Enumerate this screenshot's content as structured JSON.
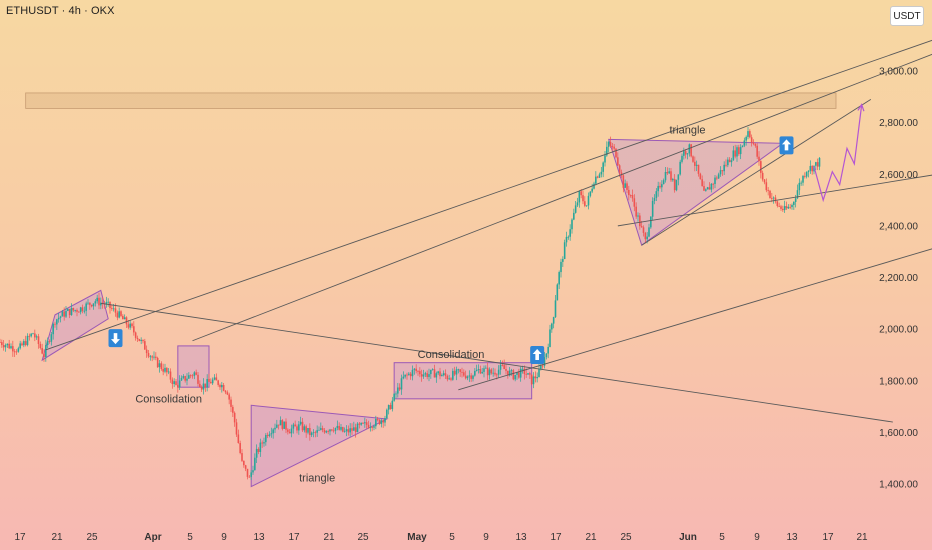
{
  "header": {
    "title": "ETHUSDT · 4h · OKX",
    "currency_badge": "USDT"
  },
  "chart_data": {
    "type": "candlestick",
    "symbol": "ETHUSDT",
    "timeframe": "4h",
    "exchange": "OKX",
    "ylim": [
      1300,
      3200
    ],
    "y_ticks": [
      "3,000.00",
      "2,800.00",
      "2,600.00",
      "2,400.00",
      "2,200.00",
      "2,000.00",
      "1,800.00",
      "1,600.00",
      "1,400.00"
    ],
    "x_ticks": [
      "17",
      "21",
      "25",
      "Apr",
      "5",
      "9",
      "13",
      "17",
      "21",
      "25",
      "May",
      "5",
      "9",
      "13",
      "17",
      "21",
      "25",
      "Jun",
      "5",
      "9",
      "13",
      "17",
      "21"
    ],
    "grid": false,
    "colors": {
      "up": "#26a69a",
      "down": "#ef5350",
      "line": "#5a5a5a",
      "pattern_fill": "#c08fd6",
      "pattern_stroke": "#9b59b6",
      "arrow_box": "#2f86d6",
      "projection": "#b455d3"
    },
    "price_path": [
      [
        0,
        1950
      ],
      [
        10,
        1920
      ],
      [
        18,
        1985
      ],
      [
        24,
        1900
      ],
      [
        30,
        2035
      ],
      [
        36,
        2065
      ],
      [
        44,
        2080
      ],
      [
        52,
        2110
      ],
      [
        58,
        2095
      ],
      [
        64,
        2060
      ],
      [
        72,
        2000
      ],
      [
        78,
        1940
      ],
      [
        84,
        1880
      ],
      [
        90,
        1840
      ],
      [
        96,
        1780
      ],
      [
        100,
        1805
      ],
      [
        106,
        1830
      ],
      [
        110,
        1780
      ],
      [
        116,
        1800
      ],
      [
        120,
        1790
      ],
      [
        124,
        1760
      ],
      [
        128,
        1640
      ],
      [
        132,
        1480
      ],
      [
        136,
        1420
      ],
      [
        140,
        1520
      ],
      [
        146,
        1600
      ],
      [
        152,
        1640
      ],
      [
        158,
        1610
      ],
      [
        164,
        1625
      ],
      [
        170,
        1590
      ],
      [
        176,
        1610
      ],
      [
        182,
        1620
      ],
      [
        188,
        1600
      ],
      [
        194,
        1615
      ],
      [
        200,
        1630
      ],
      [
        206,
        1640
      ],
      [
        210,
        1660
      ],
      [
        214,
        1720
      ],
      [
        220,
        1810
      ],
      [
        226,
        1840
      ],
      [
        232,
        1825
      ],
      [
        238,
        1830
      ],
      [
        244,
        1815
      ],
      [
        250,
        1830
      ],
      [
        256,
        1820
      ],
      [
        262,
        1845
      ],
      [
        268,
        1830
      ],
      [
        274,
        1850
      ],
      [
        280,
        1820
      ],
      [
        286,
        1835
      ],
      [
        290,
        1800
      ],
      [
        294,
        1830
      ],
      [
        298,
        1910
      ],
      [
        302,
        2060
      ],
      [
        304,
        2180
      ],
      [
        308,
        2320
      ],
      [
        312,
        2420
      ],
      [
        316,
        2520
      ],
      [
        320,
        2480
      ],
      [
        324,
        2580
      ],
      [
        328,
        2620
      ],
      [
        332,
        2720
      ],
      [
        336,
        2680
      ],
      [
        340,
        2560
      ],
      [
        344,
        2520
      ],
      [
        348,
        2430
      ],
      [
        352,
        2340
      ],
      [
        356,
        2480
      ],
      [
        360,
        2560
      ],
      [
        364,
        2620
      ],
      [
        368,
        2550
      ],
      [
        372,
        2680
      ],
      [
        376,
        2700
      ],
      [
        380,
        2620
      ],
      [
        384,
        2520
      ],
      [
        388,
        2560
      ],
      [
        392,
        2600
      ],
      [
        396,
        2640
      ],
      [
        400,
        2680
      ],
      [
        404,
        2700
      ],
      [
        408,
        2770
      ],
      [
        412,
        2700
      ],
      [
        416,
        2580
      ],
      [
        420,
        2520
      ],
      [
        424,
        2480
      ],
      [
        428,
        2460
      ],
      [
        432,
        2480
      ],
      [
        436,
        2560
      ],
      [
        440,
        2620
      ],
      [
        444,
        2630
      ],
      [
        448,
        2655
      ]
    ],
    "rectangles": [
      {
        "label": "Consolidation",
        "x": [
          97,
          114
        ],
        "y": [
          1775,
          1935
        ]
      },
      {
        "label": "Consolidation",
        "x": [
          215,
          290
        ],
        "y": [
          1730,
          1870
        ]
      }
    ],
    "patterns": [
      {
        "label": "",
        "points": [
          [
            23,
            1880
          ],
          [
            30,
            2055
          ],
          [
            55,
            2150
          ],
          [
            59,
            2040
          ]
        ]
      },
      {
        "label": "triangle",
        "points": [
          [
            137,
            1390
          ],
          [
            137,
            1705
          ],
          [
            211,
            1652
          ]
        ]
      },
      {
        "label": "triangle",
        "points": [
          [
            332,
            2735
          ],
          [
            427,
            2720
          ],
          [
            350,
            2325
          ]
        ]
      }
    ],
    "annotations": [
      {
        "label": "Consolidation",
        "x": 92,
        "y": 1715
      },
      {
        "label": "Consolidation",
        "x": 246,
        "y": 1888
      },
      {
        "label": "triangle",
        "x": 173,
        "y": 1410
      },
      {
        "label": "triangle",
        "x": 375,
        "y": 2758
      }
    ],
    "trend_lines": [
      {
        "from": [
          25,
          1920
        ],
        "to": [
          515,
          3135
        ]
      },
      {
        "from": [
          105,
          1955
        ],
        "to": [
          525,
          3110
        ]
      },
      {
        "from": [
          350,
          2325
        ],
        "to": [
          475,
          2890
        ]
      },
      {
        "from": [
          337,
          2400
        ],
        "to": [
          520,
          2610
        ]
      },
      {
        "from": [
          250,
          1765
        ],
        "to": [
          515,
          2325
        ]
      },
      {
        "from": [
          55,
          2100
        ],
        "to": [
          487,
          1640
        ]
      }
    ],
    "resistance_zone": {
      "y": [
        2855,
        2915
      ]
    },
    "signals": [
      {
        "direction": "down",
        "x": 63,
        "y": 1965
      },
      {
        "direction": "up",
        "x": 293,
        "y": 1900
      },
      {
        "direction": "up",
        "x": 429,
        "y": 2712
      }
    ],
    "projection": [
      [
        444,
        2630
      ],
      [
        449,
        2500
      ],
      [
        454,
        2610
      ],
      [
        458,
        2560
      ],
      [
        462,
        2700
      ],
      [
        466,
        2640
      ],
      [
        470,
        2870
      ]
    ]
  }
}
